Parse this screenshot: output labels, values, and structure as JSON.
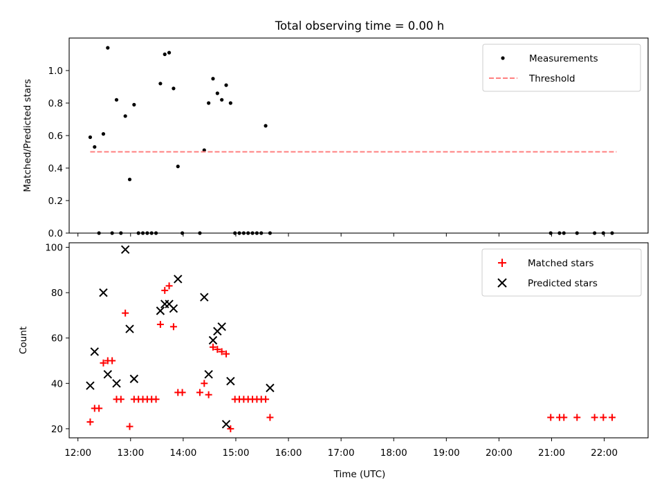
{
  "chart_data": {
    "type": "scatter",
    "title": "Total observing time = 0.00 h",
    "x_unit": "UTC clock time",
    "x_ticks": [
      "12:00",
      "13:00",
      "14:00",
      "15:00",
      "16:00",
      "17:00",
      "18:00",
      "19:00",
      "20:00",
      "21:00",
      "22:00"
    ],
    "xlabel": "Time (UTC)",
    "xlim": [
      "11:50",
      "22:50"
    ],
    "panels": [
      {
        "id": "top",
        "ylabel": "Matched/Predicted stars",
        "ylim": [
          0,
          1.2
        ],
        "y_ticks": [
          "0.0",
          "0.2",
          "0.4",
          "0.6",
          "0.8",
          "1.0"
        ],
        "legend_position": "top-right",
        "series": [
          {
            "name": "Measurements",
            "marker": "dot",
            "color": "#000000",
            "x": [
              "12:14",
              "12:19",
              "12:24",
              "12:29",
              "12:34",
              "12:39",
              "12:44",
              "12:49",
              "12:54",
              "12:59",
              "13:04",
              "13:09",
              "13:14",
              "13:19",
              "13:24",
              "13:29",
              "13:34",
              "13:39",
              "13:44",
              "13:49",
              "13:54",
              "13:59",
              "14:19",
              "14:24",
              "14:29",
              "14:34",
              "14:39",
              "14:44",
              "14:49",
              "14:54",
              "14:59",
              "15:04",
              "15:09",
              "15:14",
              "15:19",
              "15:24",
              "15:29",
              "15:34",
              "15:39",
              "20:59",
              "21:09",
              "21:14",
              "21:29",
              "21:49",
              "21:59",
              "22:09"
            ],
            "y": [
              0.59,
              0.53,
              0.0,
              0.61,
              1.14,
              0.0,
              0.82,
              0.0,
              0.72,
              0.33,
              0.79,
              0.0,
              0.0,
              0.0,
              0.0,
              0.0,
              0.92,
              1.1,
              1.11,
              0.89,
              0.41,
              0.0,
              0.0,
              0.51,
              0.8,
              0.95,
              0.86,
              0.82,
              0.91,
              0.8,
              0.0,
              0.0,
              0.0,
              0.0,
              0.0,
              0.0,
              0.0,
              0.66,
              0.0,
              0.0,
              0.0,
              0.0,
              0.0,
              0.0,
              0.0,
              0.0
            ]
          },
          {
            "name": "Threshold",
            "line_style": "dashed",
            "color": "#ff7f7f",
            "x": [
              "12:14",
              "22:14"
            ],
            "y": [
              0.5,
              0.5
            ]
          }
        ]
      },
      {
        "id": "bottom",
        "ylabel": "Count",
        "ylim": [
          16,
          102
        ],
        "y_ticks": [
          "20",
          "40",
          "60",
          "80",
          "100"
        ],
        "legend_position": "top-right",
        "series": [
          {
            "name": "Matched stars",
            "marker": "plus",
            "color": "#ff0000",
            "x": [
              "12:14",
              "12:19",
              "12:24",
              "12:29",
              "12:34",
              "12:39",
              "12:44",
              "12:49",
              "12:54",
              "12:59",
              "13:04",
              "13:09",
              "13:14",
              "13:19",
              "13:24",
              "13:29",
              "13:34",
              "13:39",
              "13:44",
              "13:49",
              "13:54",
              "13:59",
              "14:19",
              "14:24",
              "14:29",
              "14:34",
              "14:39",
              "14:44",
              "14:49",
              "14:54",
              "14:59",
              "15:04",
              "15:09",
              "15:14",
              "15:19",
              "15:24",
              "15:29",
              "15:34",
              "15:39",
              "20:59",
              "21:09",
              "21:14",
              "21:29",
              "21:49",
              "21:59",
              "22:09"
            ],
            "y": [
              23,
              29,
              29,
              49,
              50,
              50,
              33,
              33,
              71,
              21,
              33,
              33,
              33,
              33,
              33,
              33,
              66,
              81,
              83,
              65,
              36,
              36,
              36,
              40,
              35,
              56,
              55,
              54,
              53,
              20,
              33,
              33,
              33,
              33,
              33,
              33,
              33,
              33,
              25,
              25,
              25,
              25,
              25,
              25,
              25,
              25
            ]
          },
          {
            "name": "Predicted stars",
            "marker": "x",
            "color": "#000000",
            "x": [
              "12:14",
              "12:19",
              "12:29",
              "12:34",
              "12:44",
              "12:54",
              "12:59",
              "13:04",
              "13:34",
              "13:39",
              "13:44",
              "13:49",
              "13:54",
              "14:24",
              "14:29",
              "14:34",
              "14:39",
              "14:44",
              "14:49",
              "14:54",
              "15:39"
            ],
            "y": [
              39,
              54,
              80,
              44,
              40,
              99,
              64,
              42,
              72,
              75,
              75,
              73,
              86,
              78,
              44,
              59,
              63,
              65,
              22,
              41,
              38
            ]
          }
        ]
      }
    ]
  }
}
